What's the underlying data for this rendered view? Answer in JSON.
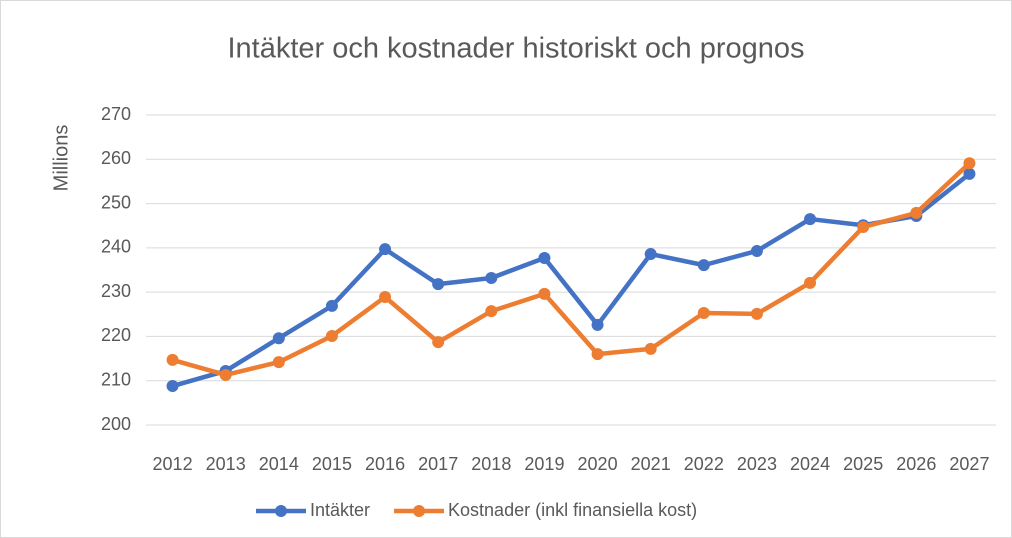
{
  "chart_data": {
    "type": "line",
    "title": "Intäkter och kostnader historiskt och prognos",
    "y_label": "Millions",
    "categories": [
      "2012",
      "2013",
      "2014",
      "2015",
      "2016",
      "2017",
      "2018",
      "2019",
      "2020",
      "2021",
      "2022",
      "2023",
      "2024",
      "2025",
      "2026",
      "2027"
    ],
    "series": [
      {
        "name": "Intäkter",
        "color": "#4472c4",
        "values": [
          208.8,
          212.2,
          219.6,
          226.9,
          239.7,
          231.8,
          233.2,
          237.7,
          222.6,
          238.6,
          236.1,
          239.3,
          246.5,
          245.1,
          247.2,
          256.7
        ]
      },
      {
        "name": "Kostnader (inkl finansiella kost)",
        "color": "#ed7d31",
        "values": [
          214.7,
          211.3,
          214.2,
          220.1,
          228.9,
          218.7,
          225.7,
          229.6,
          216.0,
          217.2,
          225.3,
          225.1,
          232.1,
          244.7,
          247.9,
          259.1
        ]
      }
    ],
    "ylim": [
      200,
      270
    ],
    "yticks": [
      200,
      210,
      220,
      230,
      240,
      250,
      260,
      270
    ],
    "grid": true,
    "legend": "bottom"
  }
}
